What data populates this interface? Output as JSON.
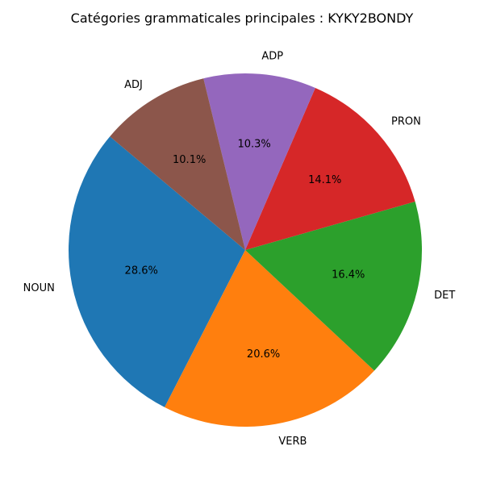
{
  "chart_data": {
    "type": "pie",
    "title": "Catégories grammaticales principales : KYKY2BONDY",
    "start_angle_deg": 140,
    "direction": "counterclockwise",
    "slices": [
      {
        "label": "NOUN",
        "value": 28.6,
        "pct_label": "28.6%",
        "color": "#1f77b4"
      },
      {
        "label": "VERB",
        "value": 20.6,
        "pct_label": "20.6%",
        "color": "#ff7f0e"
      },
      {
        "label": "DET",
        "value": 16.4,
        "pct_label": "16.4%",
        "color": "#2ca02c"
      },
      {
        "label": "PRON",
        "value": 14.1,
        "pct_label": "14.1%",
        "color": "#d62728"
      },
      {
        "label": "ADP",
        "value": 10.3,
        "pct_label": "10.3%",
        "color": "#9467bd"
      },
      {
        "label": "ADJ",
        "value": 10.1,
        "pct_label": "10.1%",
        "color": "#8c564b"
      }
    ]
  }
}
